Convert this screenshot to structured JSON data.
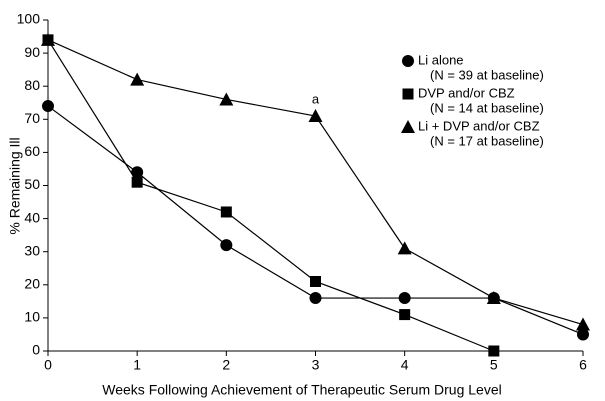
{
  "chart_data": {
    "type": "line",
    "x_label": "Weeks Following Achievement of Therapeutic Serum Drug Level",
    "y_label": "% Remaining Ill",
    "x": [
      0,
      1,
      2,
      3,
      4,
      5,
      6
    ],
    "series": [
      {
        "name": "Li alone",
        "legend_note": "(N = 39 at baseline)",
        "color": "#000000",
        "marker": "circle",
        "values": [
          74,
          54,
          32,
          16,
          16,
          16,
          5
        ]
      },
      {
        "name": "DVP and/or CBZ",
        "legend_note": "(N = 14 at baseline)",
        "color": "#000000",
        "marker": "square",
        "values": [
          94,
          51,
          42,
          21,
          11,
          0,
          null
        ]
      },
      {
        "name": "Li + DVP and/or CBZ",
        "legend_note": "(N = 17 at baseline)",
        "color": "#000000",
        "marker": "triangle",
        "values": [
          94,
          82,
          76,
          71,
          31,
          16,
          8
        ]
      }
    ],
    "annotation": {
      "text": "a",
      "x": 3
    },
    "xlim": [
      0,
      6
    ],
    "xticks": [
      0,
      1,
      2,
      3,
      4,
      5,
      6
    ],
    "ylim": [
      0,
      100
    ],
    "yticks": [
      0,
      10,
      20,
      30,
      40,
      50,
      60,
      70,
      80,
      90,
      100
    ],
    "grid": false,
    "legend_position": "upper right"
  }
}
